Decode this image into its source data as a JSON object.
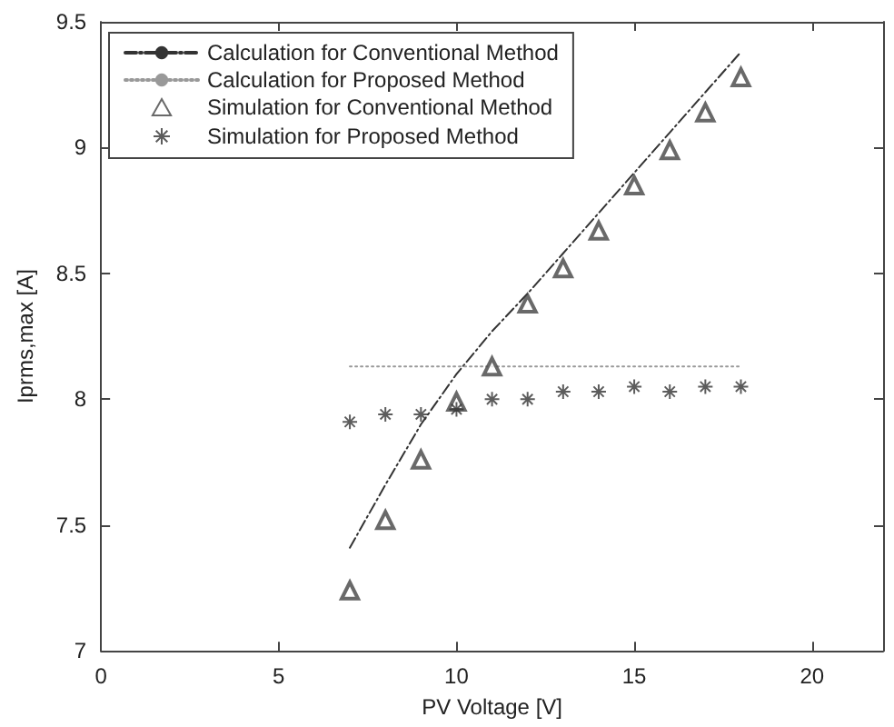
{
  "chart_data": {
    "type": "scatter",
    "xlabel": "PV Voltage [V]",
    "ylabel": "Iprms,max [A]",
    "xlim": [
      0,
      22
    ],
    "xticks": [
      0,
      5,
      10,
      15,
      20
    ],
    "ylim": [
      7,
      9.5
    ],
    "yticks": [
      7,
      7.5,
      8,
      8.5,
      9,
      9.5
    ],
    "legend": "top left",
    "series": [
      {
        "name": "Calculation for Conventional Method",
        "type": "line",
        "color": "#333333",
        "line_style": "dashed",
        "marker": "none",
        "x": [
          7,
          8,
          9,
          10,
          11,
          12,
          13,
          14,
          15,
          16,
          17,
          18
        ],
        "values": [
          7.41,
          7.66,
          7.9,
          8.1,
          8.27,
          8.42,
          8.58,
          8.74,
          8.9,
          9.06,
          9.22,
          9.38
        ]
      },
      {
        "name": "Calculation for Proposed Method",
        "type": "line",
        "color": "#999999",
        "line_style": "dotted",
        "marker": "none",
        "x": [
          7,
          18
        ],
        "values": [
          8.13,
          8.13
        ]
      },
      {
        "name": "Simulation for Conventional Method",
        "color": "#444444",
        "marker": "triangle",
        "x": [
          7,
          8,
          9,
          10,
          11,
          12,
          13,
          14,
          15,
          16,
          17,
          18
        ],
        "values": [
          7.24,
          7.52,
          7.76,
          7.99,
          8.13,
          8.38,
          8.52,
          8.67,
          8.85,
          8.99,
          9.14,
          9.28
        ]
      },
      {
        "name": "Simulation for Proposed Method",
        "color": "#333333",
        "marker": "cross",
        "x": [
          7,
          8,
          9,
          10,
          11,
          12,
          13,
          14,
          15,
          16,
          17,
          18
        ],
        "values": [
          7.91,
          7.94,
          7.94,
          7.96,
          8.0,
          8.0,
          8.03,
          8.03,
          8.05,
          8.03,
          8.05,
          8.05
        ]
      }
    ]
  }
}
